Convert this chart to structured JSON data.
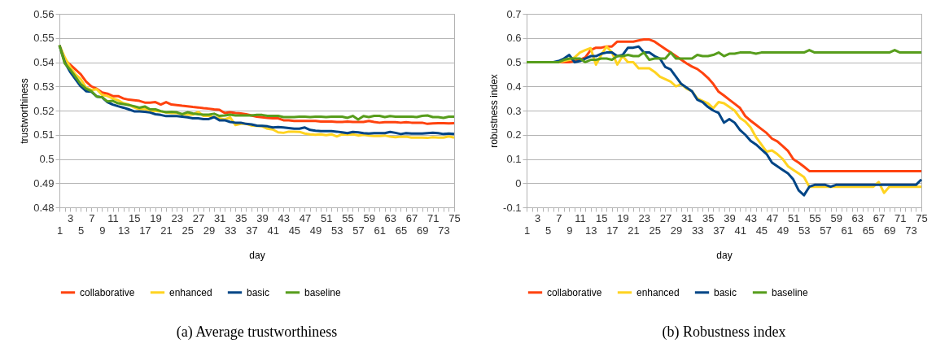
{
  "chart_data": [
    {
      "type": "line",
      "title": "(a) Average trustworthiness",
      "xlabel": "day",
      "ylabel": "trustworthiness",
      "categories": [
        "1",
        null,
        "3",
        null,
        "5",
        null,
        "7",
        null,
        "9",
        null,
        "11",
        null,
        "13",
        null,
        "15",
        null,
        "17",
        null,
        "19",
        null,
        "21",
        null,
        "23",
        null,
        "25",
        null,
        "27",
        null,
        "29",
        null,
        "31",
        null,
        "33",
        null,
        "35",
        null,
        "37",
        null,
        "39",
        null,
        "41",
        null,
        "43",
        null,
        "45",
        null,
        "47",
        null,
        "49",
        null,
        "51",
        null,
        "53",
        null,
        "55",
        null,
        "57",
        null,
        "59",
        null,
        "61",
        null,
        "63",
        null,
        "65",
        null,
        "67",
        null,
        "69",
        null,
        "71",
        null,
        "73",
        null,
        "75"
      ],
      "ylim": [
        0.48,
        0.56
      ],
      "yticks": [
        0.48,
        0.49,
        {
          "value": 0.5,
          "label": "0.5"
        },
        0.51,
        0.52,
        0.53,
        0.54,
        0.55,
        0.56
      ],
      "grid": "y",
      "legend": "bottom",
      "line_style": "solid",
      "marker": "none",
      "series": [
        {
          "name": "collaborative",
          "color": "#ff420e",
          "values": [
            0.547,
            0.541,
            0.539,
            0.537,
            0.535,
            0.532,
            0.53,
            0.529,
            0.5275,
            0.527,
            0.526,
            0.526,
            0.525,
            0.5245,
            0.5243,
            0.524,
            0.5233,
            0.5233,
            0.5235,
            0.5225,
            0.5235,
            0.5225,
            0.5223,
            0.522,
            0.5218,
            0.5215,
            0.5213,
            0.521,
            0.5208,
            0.5205,
            0.5203,
            0.519,
            0.5193,
            0.519,
            0.5188,
            0.5185,
            0.518,
            0.5175,
            0.5172,
            0.517,
            0.5168,
            0.5168,
            0.516,
            0.516,
            0.5157,
            0.5157,
            0.5157,
            0.5157,
            0.5157,
            0.5155,
            0.5155,
            0.5155,
            0.5153,
            0.5153,
            0.5155,
            0.5153,
            0.5153,
            0.5153,
            0.5157,
            0.5153,
            0.515,
            0.5152,
            0.5152,
            0.5152,
            0.515,
            0.5152,
            0.515,
            0.515,
            0.515,
            0.5145,
            0.5147,
            0.5148,
            0.5148,
            0.5147,
            0.5148
          ]
        },
        {
          "name": "enhanced",
          "color": "#ffd320",
          "values": [
            0.547,
            0.542,
            0.538,
            0.535,
            0.533,
            0.5295,
            0.5285,
            0.5288,
            0.5265,
            0.526,
            0.525,
            0.5243,
            0.523,
            0.5225,
            0.5213,
            0.5205,
            0.5207,
            0.5198,
            0.5198,
            0.5197,
            0.5192,
            0.519,
            0.519,
            0.5185,
            0.5183,
            0.5183,
            0.5195,
            0.5178,
            0.5178,
            0.5172,
            0.5168,
            0.5163,
            0.5172,
            0.514,
            0.5145,
            0.5145,
            0.5138,
            0.5137,
            0.5135,
            0.5125,
            0.5122,
            0.511,
            0.5108,
            0.5113,
            0.5113,
            0.5112,
            0.5105,
            0.5102,
            0.51,
            0.5102,
            0.5098,
            0.5102,
            0.5093,
            0.5102,
            0.51,
            0.5102,
            0.5097,
            0.51,
            0.5097,
            0.5095,
            0.5095,
            0.5097,
            0.5092,
            0.509,
            0.5092,
            0.5092,
            0.5088,
            0.5088,
            0.5088,
            0.5087,
            0.509,
            0.5088,
            0.5088,
            0.5093,
            0.5088
          ]
        },
        {
          "name": "basic",
          "color": "#004586",
          "values": [
            0.547,
            0.54,
            0.536,
            0.533,
            0.53,
            0.528,
            0.5278,
            0.5258,
            0.5255,
            0.5235,
            0.5225,
            0.5218,
            0.5212,
            0.5205,
            0.5197,
            0.5197,
            0.5195,
            0.5192,
            0.5185,
            0.5182,
            0.5177,
            0.5177,
            0.5177,
            0.5175,
            0.5172,
            0.5168,
            0.5168,
            0.5165,
            0.5165,
            0.5173,
            0.516,
            0.516,
            0.5153,
            0.515,
            0.515,
            0.5145,
            0.5143,
            0.5138,
            0.5137,
            0.5135,
            0.513,
            0.5132,
            0.513,
            0.5128,
            0.5125,
            0.5125,
            0.513,
            0.512,
            0.5117,
            0.5115,
            0.5115,
            0.5115,
            0.5113,
            0.511,
            0.5107,
            0.5112,
            0.511,
            0.5107,
            0.5105,
            0.5107,
            0.5107,
            0.5107,
            0.5112,
            0.5108,
            0.5103,
            0.5107,
            0.5105,
            0.5105,
            0.5105,
            0.5107,
            0.5108,
            0.5107,
            0.5103,
            0.5105,
            0.5103
          ]
        },
        {
          "name": "baseline",
          "color": "#579d1c",
          "values": [
            0.547,
            0.5395,
            0.537,
            0.534,
            0.531,
            0.529,
            0.528,
            0.5258,
            0.5255,
            0.5238,
            0.524,
            0.523,
            0.5227,
            0.5223,
            0.5218,
            0.5212,
            0.5217,
            0.5205,
            0.5205,
            0.5198,
            0.5193,
            0.5195,
            0.5193,
            0.5185,
            0.5193,
            0.5188,
            0.5185,
            0.5183,
            0.5183,
            0.5187,
            0.5178,
            0.518,
            0.5183,
            0.518,
            0.518,
            0.518,
            0.518,
            0.5182,
            0.5182,
            0.5178,
            0.5178,
            0.5178,
            0.5173,
            0.5173,
            0.5173,
            0.5175,
            0.5175,
            0.5173,
            0.5175,
            0.5175,
            0.5173,
            0.5175,
            0.5175,
            0.5175,
            0.517,
            0.5178,
            0.5163,
            0.5177,
            0.5173,
            0.5178,
            0.5178,
            0.5173,
            0.5177,
            0.5175,
            0.5175,
            0.5175,
            0.5175,
            0.5173,
            0.5178,
            0.518,
            0.5173,
            0.5173,
            0.517,
            0.5175,
            0.5175
          ]
        }
      ]
    },
    {
      "type": "line",
      "title": "(b) Robustness index",
      "xlabel": "day",
      "ylabel": "robustness index",
      "categories": [
        "1",
        null,
        "3",
        null,
        "5",
        null,
        "7",
        null,
        "9",
        null,
        "11",
        null,
        "13",
        null,
        "15",
        null,
        "17",
        null,
        "19",
        null,
        "21",
        null,
        "23",
        null,
        "25",
        null,
        "27",
        null,
        "29",
        null,
        "31",
        null,
        "33",
        null,
        "35",
        null,
        "37",
        null,
        "39",
        null,
        "41",
        null,
        "43",
        null,
        "45",
        null,
        "47",
        null,
        "49",
        null,
        "51",
        null,
        "53",
        null,
        "55",
        null,
        "57",
        null,
        "59",
        null,
        "61",
        null,
        "63",
        null,
        "65",
        null,
        "67",
        null,
        "69",
        null,
        "71",
        null,
        "73",
        null,
        "75"
      ],
      "ylim": [
        -0.1,
        0.7
      ],
      "yticks": [
        -0.1,
        {
          "value": 0,
          "label": "0"
        },
        0.1,
        0.2,
        0.3,
        0.4,
        0.5,
        0.6,
        0.7
      ],
      "grid": "y",
      "legend": "bottom",
      "line_style": "solid",
      "marker": "none",
      "series": [
        {
          "name": "collaborative",
          "color": "#ff420e",
          "values": [
            null,
            null,
            null,
            null,
            null,
            null,
            0.5,
            0.5,
            0.5,
            0.505,
            0.51,
            0.52,
            0.55,
            0.56,
            0.56,
            0.565,
            0.565,
            0.585,
            0.585,
            0.585,
            0.585,
            0.59,
            0.594,
            0.594,
            0.585,
            0.57,
            0.555,
            0.54,
            0.525,
            0.51,
            0.495,
            0.482,
            0.472,
            0.455,
            0.435,
            0.41,
            0.378,
            0.362,
            0.345,
            0.328,
            0.311,
            0.277,
            0.258,
            0.241,
            0.224,
            0.207,
            0.184,
            0.173,
            0.153,
            0.133,
            0.099,
            0.085,
            0.068,
            0.05,
            0.05,
            0.05,
            0.05,
            0.05,
            0.05,
            0.05,
            0.05,
            0.05,
            0.05,
            0.05,
            0.05,
            0.05,
            0.05,
            0.05,
            0.05,
            0.05,
            0.05,
            0.05,
            0.05,
            0.05,
            0.05
          ]
        },
        {
          "name": "enhanced",
          "color": "#ffd320",
          "values": [
            null,
            null,
            null,
            null,
            null,
            null,
            0.5,
            0.505,
            0.51,
            0.52,
            0.54,
            0.55,
            0.558,
            0.49,
            0.53,
            0.565,
            0.54,
            0.49,
            0.525,
            0.5,
            0.5,
            0.475,
            0.475,
            0.475,
            0.46,
            0.44,
            0.43,
            0.42,
            0.4,
            0.41,
            0.39,
            0.38,
            0.35,
            0.34,
            0.33,
            0.31,
            0.335,
            0.33,
            0.315,
            0.3,
            0.27,
            0.255,
            0.23,
            0.19,
            0.16,
            0.13,
            0.135,
            0.12,
            0.1,
            0.07,
            0.055,
            0.04,
            0.025,
            -0.015,
            -0.015,
            -0.015,
            -0.015,
            -0.015,
            -0.015,
            -0.015,
            -0.015,
            -0.015,
            -0.015,
            -0.015,
            -0.015,
            -0.015,
            0.005,
            -0.04,
            -0.015,
            -0.015,
            -0.015,
            -0.015,
            -0.015,
            -0.015,
            -0.015
          ]
        },
        {
          "name": "basic",
          "color": "#004586",
          "values": [
            null,
            null,
            null,
            null,
            null,
            0.5,
            0.505,
            0.515,
            0.53,
            0.5,
            0.505,
            0.515,
            0.525,
            0.525,
            0.535,
            0.54,
            0.54,
            0.525,
            0.53,
            0.56,
            0.56,
            0.565,
            0.54,
            0.54,
            0.525,
            0.515,
            0.48,
            0.47,
            0.44,
            0.41,
            0.395,
            0.38,
            0.345,
            0.335,
            0.315,
            0.3,
            0.29,
            0.25,
            0.265,
            0.25,
            0.22,
            0.2,
            0.175,
            0.16,
            0.14,
            0.12,
            0.085,
            0.07,
            0.055,
            0.04,
            0.015,
            -0.03,
            -0.05,
            -0.015,
            -0.007,
            -0.007,
            -0.007,
            -0.015,
            -0.007,
            -0.007,
            -0.007,
            -0.007,
            -0.007,
            -0.007,
            -0.007,
            -0.007,
            -0.007,
            -0.007,
            -0.007,
            -0.007,
            -0.007,
            -0.007,
            -0.007,
            -0.007,
            0.015
          ]
        },
        {
          "name": "baseline",
          "color": "#579d1c",
          "values": [
            0.5,
            0.5,
            0.5,
            0.5,
            0.5,
            0.5,
            0.5,
            0.51,
            0.515,
            0.515,
            0.515,
            0.5,
            0.51,
            0.51,
            0.515,
            0.515,
            0.51,
            0.525,
            0.525,
            0.53,
            0.525,
            0.525,
            0.54,
            0.51,
            0.515,
            0.515,
            0.515,
            0.54,
            0.515,
            0.515,
            0.515,
            0.515,
            0.53,
            0.525,
            0.525,
            0.53,
            0.54,
            0.525,
            0.535,
            0.535,
            0.54,
            0.54,
            0.54,
            0.535,
            0.54,
            0.54,
            0.54,
            0.54,
            0.54,
            0.54,
            0.54,
            0.54,
            0.54,
            0.55,
            0.54,
            0.54,
            0.54,
            0.54,
            0.54,
            0.54,
            0.54,
            0.54,
            0.54,
            0.54,
            0.54,
            0.54,
            0.54,
            0.54,
            0.54,
            0.55,
            0.54,
            0.54,
            0.54,
            0.54,
            0.54
          ]
        }
      ]
    }
  ]
}
